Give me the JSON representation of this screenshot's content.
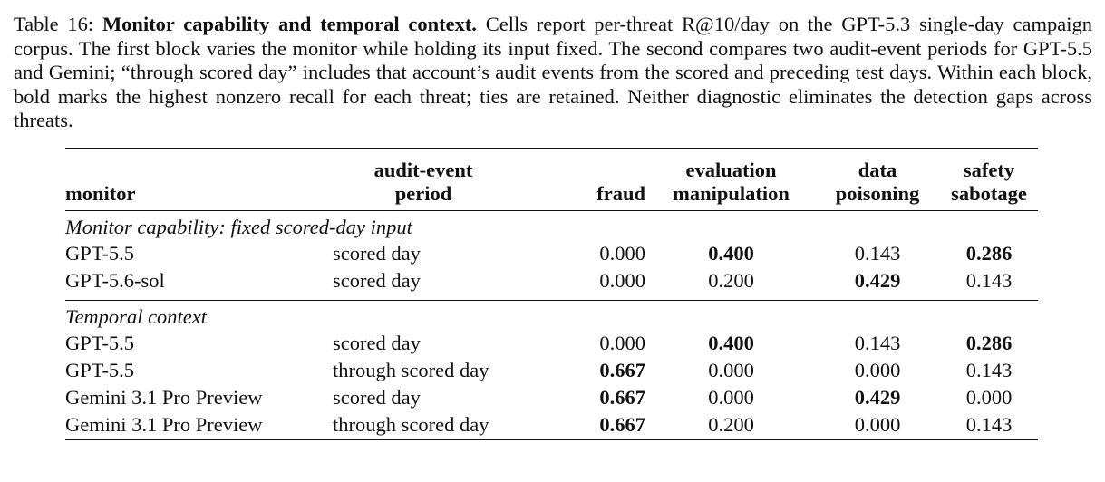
{
  "caption": {
    "label": "Table 16:",
    "title": "Monitor capability and temporal context.",
    "body": "Cells report per-threat R@10/day on the GPT-5.3 single-day campaign corpus. The first block varies the monitor while holding its input fixed. The second compares two audit-event periods for GPT-5.5 and Gemini; “through scored day” includes that account’s audit events from the scored and preceding test days. Within each block, bold marks the highest nonzero recall for each threat; ties are retained. Neither diagnostic eliminates the detection gaps across threats."
  },
  "table": {
    "headers": {
      "monitor": "monitor",
      "period_line1": "audit-event",
      "period_line2": "period",
      "fraud": "fraud",
      "eval_line1": "evaluation",
      "eval_line2": "manipulation",
      "data_line1": "data",
      "data_line2": "poisoning",
      "safety_line1": "safety",
      "safety_line2": "sabotage"
    },
    "blocks": [
      {
        "title": "Monitor capability: fixed scored-day input",
        "rows": [
          {
            "monitor": "GPT-5.5",
            "period": "scored day",
            "fraud": "0.000",
            "eval": "0.400",
            "data": "0.143",
            "safety": "0.286",
            "bold": [
              "eval",
              "safety"
            ]
          },
          {
            "monitor": "GPT-5.6-sol",
            "period": "scored day",
            "fraud": "0.000",
            "eval": "0.200",
            "data": "0.429",
            "safety": "0.143",
            "bold": [
              "data"
            ]
          }
        ]
      },
      {
        "title": "Temporal context",
        "rows": [
          {
            "monitor": "GPT-5.5",
            "period": "scored day",
            "fraud": "0.000",
            "eval": "0.400",
            "data": "0.143",
            "safety": "0.286",
            "bold": [
              "eval",
              "safety"
            ]
          },
          {
            "monitor": "GPT-5.5",
            "period": "through scored day",
            "fraud": "0.667",
            "eval": "0.000",
            "data": "0.000",
            "safety": "0.143",
            "bold": [
              "fraud"
            ]
          },
          {
            "monitor": "Gemini 3.1 Pro Preview",
            "period": "scored day",
            "fraud": "0.667",
            "eval": "0.000",
            "data": "0.429",
            "safety": "0.000",
            "bold": [
              "fraud",
              "data"
            ]
          },
          {
            "monitor": "Gemini 3.1 Pro Preview",
            "period": "through scored day",
            "fraud": "0.667",
            "eval": "0.200",
            "data": "0.000",
            "safety": "0.143",
            "bold": [
              "fraud"
            ]
          }
        ]
      }
    ]
  }
}
